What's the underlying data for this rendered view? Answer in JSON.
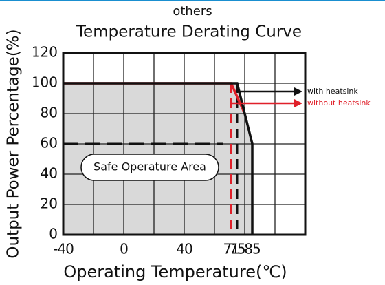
{
  "header": "others",
  "chart_data": {
    "type": "line",
    "title": "Temperature Derating Curve",
    "xlabel": "Operating Temperature(℃)",
    "ylabel": "Output Power Percentage(%)",
    "xlim": [
      -40,
      120
    ],
    "ylim": [
      0,
      120
    ],
    "xticks": [
      -40,
      0,
      40,
      71,
      75,
      85
    ],
    "xgrid": [
      -40,
      -20,
      0,
      20,
      40,
      60,
      80,
      100,
      120
    ],
    "yticks": [
      0,
      20,
      40,
      60,
      80,
      100,
      120
    ],
    "grid": true,
    "series": [
      {
        "name": "with heatsink",
        "color": "#111111",
        "x": [
          -40,
          75,
          85,
          85
        ],
        "values": [
          100,
          100,
          60,
          0
        ]
      },
      {
        "name": "without heatsink",
        "color": "#e0202a",
        "x": [
          -40,
          71,
          80
        ],
        "values": [
          100,
          100,
          80
        ]
      }
    ],
    "ref_lines": [
      {
        "axis": "x",
        "value": 71,
        "color": "#e0202a"
      },
      {
        "axis": "x",
        "value": 75,
        "color": "#111111"
      },
      {
        "axis": "y",
        "value": 60,
        "color": "#111111"
      }
    ],
    "annotation": "Safe Operature Area"
  }
}
